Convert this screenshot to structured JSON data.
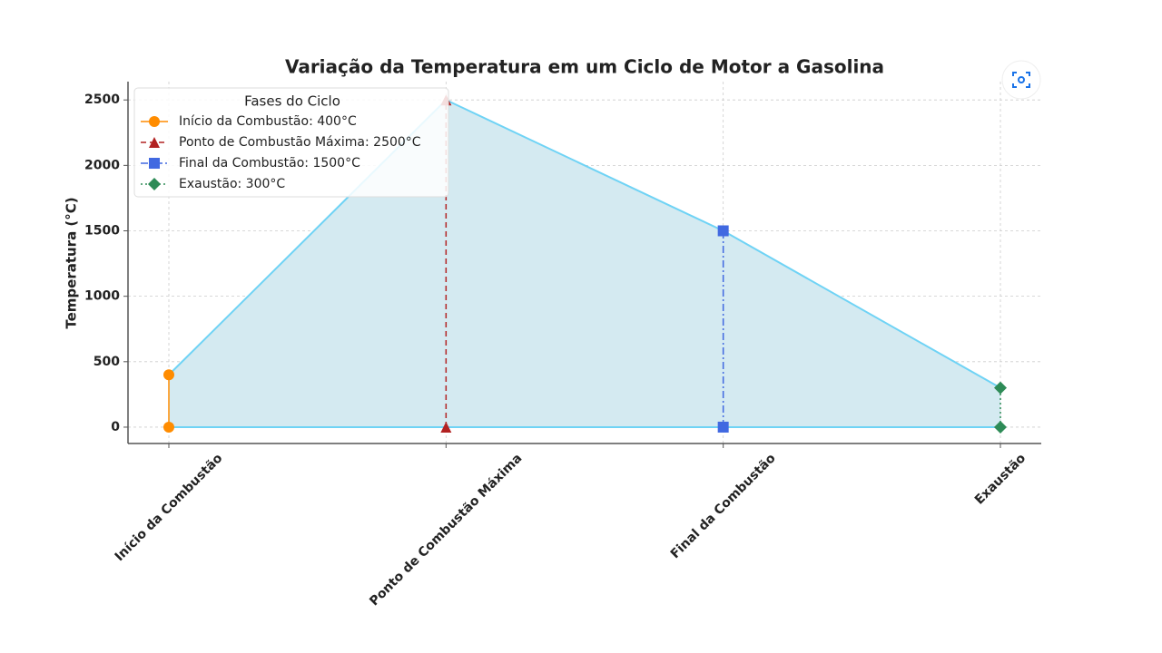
{
  "chart_data": {
    "type": "line",
    "title": "Variação da Temperatura em um Ciclo de Motor a Gasolina",
    "ylabel": "Temperatura (°C)",
    "categories": [
      "Início da Combustão",
      "Ponto de Combustão Máxima",
      "Final da Combustão",
      "Exaustão"
    ],
    "values": [
      400,
      2500,
      1500,
      300
    ],
    "line_color": "#6fd3f5",
    "fill_color": "#d4eaf1",
    "ylim": [
      -125,
      2640
    ],
    "yticks": [
      0,
      500,
      1000,
      1500,
      2000,
      2500
    ],
    "grid": true,
    "legend": {
      "title": "Fases do Ciclo",
      "position": "upper left"
    },
    "series": [
      {
        "name": "Início da Combustão: 400°C",
        "color": "#ff8c00",
        "marker": "circle",
        "linestyle": "solid"
      },
      {
        "name": "Ponto de Combustão Máxima: 2500°C",
        "color": "#b22222",
        "marker": "triangle",
        "linestyle": "dashed"
      },
      {
        "name": "Final da Combustão: 1500°C",
        "color": "#4169e1",
        "marker": "square",
        "linestyle": "dashdot"
      },
      {
        "name": "Exaustão: 300°C",
        "color": "#2e8b57",
        "marker": "diamond",
        "linestyle": "dotted"
      }
    ]
  }
}
